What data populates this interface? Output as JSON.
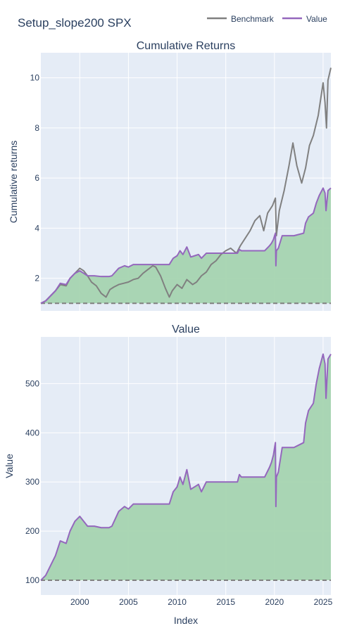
{
  "title": "Setup_slope200 SPX",
  "colors": {
    "benchmark": "#808080",
    "value": "#9467bd",
    "fill": "#a5d4b0",
    "baseline": "#808080",
    "plot_bg": "#e5ecf6",
    "grid": "#ffffff"
  },
  "legend": [
    {
      "name": "Benchmark",
      "color": "#808080"
    },
    {
      "name": "Value",
      "color": "#9467bd"
    }
  ],
  "chart_data": [
    {
      "type": "area",
      "title": "Cumulative Returns",
      "xlabel": "",
      "ylabel": "Cumulative returns",
      "xlim": [
        1996.0,
        2025.8
      ],
      "ylim": [
        0.7,
        11.0
      ],
      "yticks": [
        2,
        4,
        6,
        8,
        10
      ],
      "xticks": [
        2000,
        2005,
        2010,
        2015,
        2020,
        2025
      ],
      "show_xtick_labels": false,
      "baseline": 1,
      "series": [
        {
          "name": "Benchmark",
          "x": [
            1996.0,
            1996.5,
            1997.0,
            1997.5,
            1998.0,
            1998.6,
            1999.0,
            1999.5,
            2000.0,
            2000.4,
            2000.8,
            2001.2,
            2001.7,
            2002.2,
            2002.7,
            2003.1,
            2003.5,
            2004.0,
            2004.5,
            2005.0,
            2005.5,
            2006.0,
            2006.5,
            2007.0,
            2007.5,
            2007.8,
            2008.3,
            2008.8,
            2009.2,
            2009.5,
            2010.0,
            2010.5,
            2011.0,
            2011.6,
            2012.0,
            2012.5,
            2013.0,
            2013.5,
            2014.0,
            2014.5,
            2015.0,
            2015.5,
            2016.1,
            2016.5,
            2017.0,
            2017.5,
            2018.0,
            2018.5,
            2018.9,
            2019.3,
            2019.8,
            2020.1,
            2020.2,
            2020.5,
            2021.0,
            2021.5,
            2021.9,
            2022.3,
            2022.8,
            2023.2,
            2023.6,
            2024.0,
            2024.5,
            2025.0,
            2025.2,
            2025.35,
            2025.5,
            2025.8
          ],
          "values": [
            1.0,
            1.1,
            1.3,
            1.5,
            1.75,
            1.7,
            2.0,
            2.2,
            2.4,
            2.3,
            2.1,
            1.85,
            1.7,
            1.4,
            1.25,
            1.55,
            1.65,
            1.75,
            1.8,
            1.85,
            1.95,
            2.0,
            2.2,
            2.35,
            2.5,
            2.45,
            2.1,
            1.6,
            1.25,
            1.5,
            1.75,
            1.6,
            1.95,
            1.75,
            1.85,
            2.1,
            2.25,
            2.55,
            2.7,
            2.95,
            3.1,
            3.2,
            3.0,
            3.3,
            3.6,
            3.9,
            4.3,
            4.5,
            3.9,
            4.6,
            4.9,
            5.2,
            3.7,
            4.7,
            5.5,
            6.5,
            7.4,
            6.5,
            5.8,
            6.4,
            7.3,
            7.7,
            8.5,
            9.8,
            9.0,
            8.0,
            9.9,
            10.4
          ]
        },
        {
          "name": "Value",
          "x": [
            1996.0,
            1996.5,
            1997.0,
            1997.5,
            1998.0,
            1998.6,
            1999.0,
            1999.5,
            2000.0,
            2000.4,
            2000.8,
            2001.5,
            2002.2,
            2003.0,
            2003.3,
            2004.0,
            2004.6,
            2005.0,
            2005.5,
            2006.5,
            2007.5,
            2008.5,
            2009.2,
            2009.6,
            2010.0,
            2010.3,
            2010.6,
            2011.0,
            2011.4,
            2011.8,
            2012.2,
            2012.5,
            2013.0,
            2014.0,
            2015.0,
            2016.2,
            2016.4,
            2016.6,
            2017.0,
            2018.0,
            2019.0,
            2019.5,
            2019.7,
            2019.9,
            2020.1,
            2020.15,
            2020.2,
            2020.4,
            2020.6,
            2020.8,
            2021.0,
            2021.5,
            2022.0,
            2023.0,
            2023.2,
            2023.5,
            2024.0,
            2024.3,
            2024.6,
            2025.0,
            2025.2,
            2025.3,
            2025.5,
            2025.8
          ],
          "values": [
            1.0,
            1.1,
            1.3,
            1.5,
            1.8,
            1.75,
            2.0,
            2.2,
            2.3,
            2.2,
            2.1,
            2.1,
            2.07,
            2.07,
            2.1,
            2.4,
            2.5,
            2.45,
            2.55,
            2.55,
            2.55,
            2.55,
            2.55,
            2.8,
            2.9,
            3.1,
            2.95,
            3.25,
            2.85,
            2.9,
            2.95,
            2.8,
            3.0,
            3.0,
            3.0,
            3.0,
            3.15,
            3.1,
            3.1,
            3.1,
            3.1,
            3.3,
            3.4,
            3.55,
            3.8,
            2.5,
            3.1,
            3.2,
            3.45,
            3.7,
            3.7,
            3.7,
            3.7,
            3.8,
            4.2,
            4.45,
            4.6,
            5.0,
            5.3,
            5.6,
            5.4,
            4.7,
            5.5,
            5.6
          ]
        }
      ]
    },
    {
      "type": "area",
      "title": "Value",
      "xlabel": "Index",
      "ylabel": "Value",
      "xlim": [
        1996.0,
        2025.8
      ],
      "ylim": [
        70,
        595
      ],
      "yticks": [
        100,
        200,
        300,
        400,
        500
      ],
      "xticks": [
        2000,
        2005,
        2010,
        2015,
        2020,
        2025
      ],
      "show_xtick_labels": true,
      "baseline": 100,
      "series": [
        {
          "name": "Value",
          "x": [
            1996.0,
            1996.5,
            1997.0,
            1997.5,
            1998.0,
            1998.6,
            1999.0,
            1999.5,
            2000.0,
            2000.4,
            2000.8,
            2001.5,
            2002.2,
            2003.0,
            2003.3,
            2004.0,
            2004.6,
            2005.0,
            2005.5,
            2006.5,
            2007.5,
            2008.5,
            2009.2,
            2009.6,
            2010.0,
            2010.3,
            2010.6,
            2011.0,
            2011.4,
            2011.8,
            2012.2,
            2012.5,
            2013.0,
            2014.0,
            2015.0,
            2016.2,
            2016.4,
            2016.6,
            2017.0,
            2018.0,
            2019.0,
            2019.5,
            2019.7,
            2019.9,
            2020.1,
            2020.15,
            2020.2,
            2020.4,
            2020.6,
            2020.8,
            2021.0,
            2021.5,
            2022.0,
            2023.0,
            2023.2,
            2023.5,
            2024.0,
            2024.3,
            2024.6,
            2025.0,
            2025.2,
            2025.3,
            2025.5,
            2025.8
          ],
          "values": [
            100,
            110,
            130,
            150,
            180,
            175,
            200,
            220,
            230,
            220,
            210,
            210,
            207,
            207,
            210,
            240,
            250,
            245,
            255,
            255,
            255,
            255,
            255,
            280,
            290,
            310,
            295,
            325,
            285,
            290,
            295,
            280,
            300,
            300,
            300,
            300,
            315,
            310,
            310,
            310,
            310,
            330,
            340,
            355,
            380,
            250,
            310,
            320,
            345,
            370,
            370,
            370,
            370,
            380,
            420,
            445,
            460,
            500,
            530,
            560,
            540,
            470,
            550,
            560
          ]
        }
      ]
    }
  ]
}
